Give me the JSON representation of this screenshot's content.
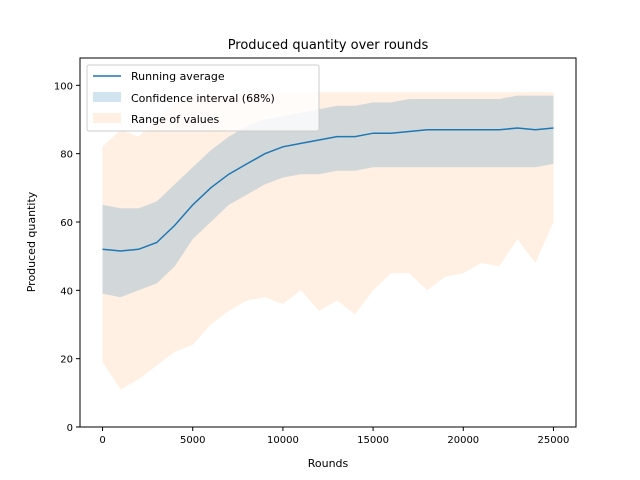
{
  "chart_data": {
    "type": "line",
    "title": "Produced quantity over rounds",
    "xlabel": "Rounds",
    "ylabel": "Produced quantity",
    "xlim": [
      -1250,
      26250
    ],
    "ylim": [
      0,
      108
    ],
    "xticks": [
      0,
      5000,
      10000,
      15000,
      20000,
      25000
    ],
    "yticks": [
      0,
      20,
      40,
      60,
      80,
      100
    ],
    "grid": false,
    "legend_position": "top-left",
    "colors": {
      "line": "#1f77b4",
      "ci_fill": "#1f77b4",
      "range_fill": "#ffdab9"
    },
    "x": [
      0,
      1000,
      2000,
      3000,
      4000,
      5000,
      6000,
      7000,
      8000,
      9000,
      10000,
      11000,
      12000,
      13000,
      14000,
      15000,
      16000,
      17000,
      18000,
      19000,
      20000,
      21000,
      22000,
      23000,
      24000,
      25000
    ],
    "series": [
      {
        "name": "Running average",
        "values": [
          52,
          51.5,
          52,
          54,
          59,
          65,
          70,
          74,
          77,
          80,
          82,
          83,
          84,
          85,
          85,
          86,
          86,
          86.5,
          87,
          87,
          87,
          87,
          87,
          87.5,
          87,
          87.5
        ]
      },
      {
        "name": "Confidence interval (68%)",
        "lower": [
          39,
          38,
          40,
          42,
          47,
          55,
          60,
          65,
          68,
          71,
          73,
          74,
          74,
          75,
          75,
          76,
          76,
          76,
          76,
          76,
          76,
          76,
          76,
          76,
          76,
          77
        ],
        "upper": [
          65,
          64,
          64,
          66,
          71,
          76,
          81,
          85,
          88,
          90,
          91,
          92,
          93,
          94,
          94,
          95,
          95,
          96,
          96,
          96,
          96,
          96,
          96,
          97,
          97,
          97
        ]
      },
      {
        "name": "Range of values",
        "lower": [
          19,
          11,
          14,
          18,
          22,
          24,
          30,
          34,
          37,
          38,
          36,
          40,
          34,
          37,
          33,
          40,
          45,
          45,
          40,
          44,
          45,
          48,
          47,
          55,
          48,
          60
        ],
        "upper": [
          82,
          87,
          85,
          90,
          95,
          97,
          97,
          97,
          98,
          98,
          98,
          98,
          98,
          98,
          98,
          98,
          98,
          98,
          98,
          98,
          98,
          98,
          98,
          98,
          98,
          98
        ]
      }
    ]
  }
}
